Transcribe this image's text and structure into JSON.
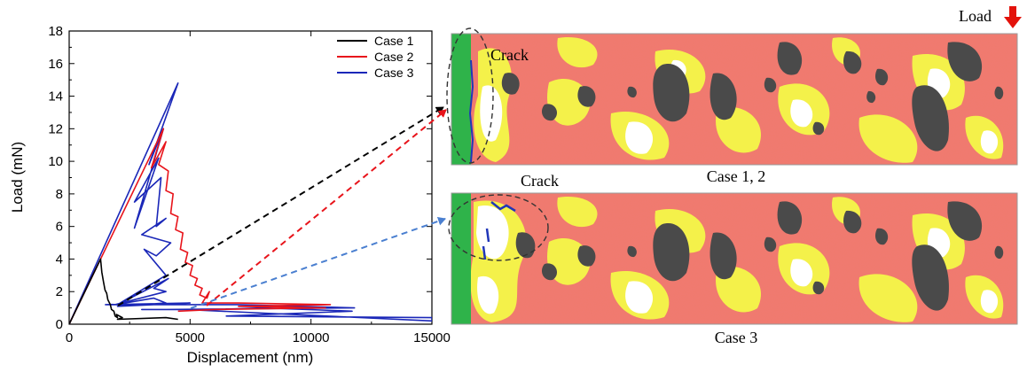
{
  "chart_data": {
    "type": "line",
    "xlabel": "Displacement (nm)",
    "ylabel": "Load (mN)",
    "xlim": [
      0,
      15000
    ],
    "ylim": [
      0,
      18
    ],
    "xticks": [
      0,
      5000,
      10000,
      15000
    ],
    "xtick_labels": [
      "0",
      "5000",
      "10000",
      "15000"
    ],
    "yticks": [
      0,
      2,
      4,
      6,
      8,
      10,
      12,
      14,
      16,
      18
    ],
    "ytick_labels": [
      "0",
      "2",
      "4",
      "6",
      "8",
      "10",
      "12",
      "14",
      "16",
      "18"
    ],
    "legend_position": "top-right",
    "series": [
      {
        "name": "Case 1",
        "color": "#000000",
        "x": [
          0,
          1300,
          1350,
          1420,
          1480,
          1550,
          1600,
          1700,
          1750,
          1850,
          1900,
          2000,
          1950,
          2200,
          2000,
          4000,
          4500
        ],
        "y": [
          0,
          4.0,
          3.2,
          2.6,
          2.1,
          1.9,
          1.5,
          1.2,
          0.9,
          0.8,
          0.5,
          0.4,
          0.6,
          0.4,
          0.3,
          0.4,
          0.3
        ]
      },
      {
        "name": "Case 2",
        "color": "#e8141b",
        "x": [
          0,
          3900,
          3400,
          4000,
          3700,
          4100,
          4000,
          4300,
          4200,
          4500,
          4400,
          4700,
          4600,
          4900,
          4800,
          5100,
          5000,
          5300,
          5200,
          5500,
          5400,
          5700,
          5800,
          5500,
          7000,
          10800,
          7000,
          10600,
          6000,
          4500
        ],
        "y": [
          0,
          12.0,
          9.6,
          11.2,
          9.8,
          9.4,
          8.2,
          8.0,
          6.8,
          6.6,
          5.8,
          5.6,
          4.6,
          4.4,
          3.8,
          3.6,
          3.0,
          2.8,
          2.4,
          2.2,
          1.8,
          1.6,
          2.0,
          1.3,
          1.3,
          1.2,
          1.1,
          1.0,
          0.9,
          0.8
        ]
      },
      {
        "name": "Case 3",
        "color": "#1a27b8",
        "x": [
          0,
          4500,
          3300,
          3900,
          2700,
          3700,
          2700,
          3800,
          3600,
          4000,
          3000,
          4200,
          3600,
          3100,
          4000,
          2000,
          4100,
          3500,
          4000,
          1900,
          3500,
          4000,
          2000,
          5000,
          1500,
          7000,
          11800,
          4000,
          3000,
          6000,
          8000,
          11700,
          6500,
          15000,
          15000,
          4800
        ],
        "y": [
          0,
          14.8,
          9.8,
          12.0,
          5.9,
          10.2,
          7.5,
          9.0,
          6.0,
          6.5,
          5.5,
          5.0,
          4.2,
          4.6,
          3.0,
          1.2,
          2.8,
          2.2,
          2.0,
          1.2,
          1.6,
          1.3,
          1.1,
          1.3,
          1.2,
          1.2,
          1.0,
          0.9,
          0.9,
          0.9,
          1.0,
          0.8,
          0.5,
          0.4,
          0.2,
          0.9
        ]
      }
    ]
  },
  "annotations": {
    "load_label": "Load",
    "crack_label_top": "Crack",
    "crack_label_bottom": "Crack",
    "panel_top_caption": "Case 1, 2",
    "panel_bottom_caption": "Case 3"
  },
  "colors": {
    "matrix_red": "#f07a6e",
    "interface_yellow": "#f4f14a",
    "aggregate_gray": "#4a4a4a",
    "void_white": "#ffffff",
    "support_green": "#2fb34a",
    "crack_blue": "#2036b8",
    "arrow_black": "#000000",
    "arrow_red": "#e8141b",
    "arrow_blue": "#4a7fd0",
    "load_arrow_red": "#e3120b"
  }
}
